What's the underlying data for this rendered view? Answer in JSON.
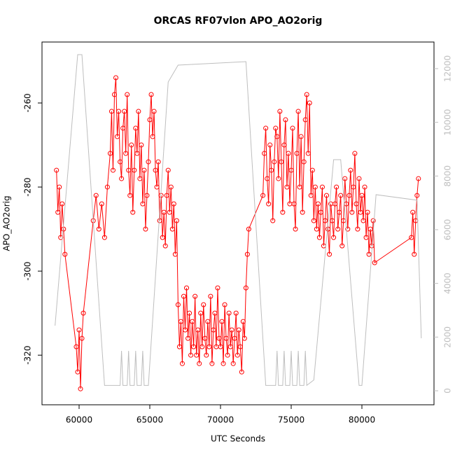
{
  "chart_data": {
    "type": "line",
    "title": "ORCAS RF07vlon APO_AO2orig",
    "x_label": "UTC Seconds",
    "y_label": "APO_AO2orig",
    "xlim": [
      57376,
      85099
    ],
    "xticks": [
      60000,
      65000,
      70000,
      75000,
      80000
    ],
    "ylim": [
      -331.8,
      -245.5
    ],
    "yticks": [
      -320,
      -300,
      -280,
      -260
    ],
    "y2lim": [
      -522,
      12991
    ],
    "y2ticks": [
      0,
      2000,
      4000,
      6000,
      8000,
      10000,
      12000
    ],
    "x": [
      58400,
      58500,
      58600,
      58700,
      58800,
      58900,
      59000,
      59800,
      59900,
      60000,
      60100,
      60200,
      60300,
      61000,
      61200,
      61400,
      61600,
      61800,
      62000,
      62200,
      62300,
      62400,
      62500,
      62600,
      62700,
      62800,
      62900,
      63000,
      63100,
      63200,
      63300,
      63400,
      63500,
      63600,
      63700,
      63800,
      63900,
      64000,
      64100,
      64200,
      64300,
      64400,
      64500,
      64600,
      64700,
      64800,
      64900,
      65000,
      65100,
      65200,
      65300,
      65400,
      65500,
      65600,
      65700,
      65800,
      65900,
      66000,
      66100,
      66200,
      66300,
      66400,
      66500,
      66600,
      66700,
      66800,
      66900,
      67000,
      67100,
      67200,
      67300,
      67400,
      67500,
      67600,
      67700,
      67800,
      67900,
      68000,
      68100,
      68200,
      68300,
      68400,
      68500,
      68600,
      68700,
      68800,
      68900,
      69000,
      69100,
      69200,
      69300,
      69400,
      69500,
      69600,
      69700,
      69800,
      69900,
      70000,
      70100,
      70200,
      70300,
      70400,
      70500,
      70600,
      70700,
      70800,
      70900,
      71000,
      71100,
      71200,
      71300,
      71400,
      71500,
      71600,
      71700,
      71800,
      71900,
      72000,
      73000,
      73100,
      73200,
      73300,
      73400,
      73500,
      73600,
      73700,
      73800,
      73900,
      74000,
      74100,
      74200,
      74300,
      74400,
      74500,
      74600,
      74700,
      74800,
      74900,
      75000,
      75100,
      75200,
      75300,
      75400,
      75500,
      75600,
      75700,
      75800,
      75900,
      76000,
      76100,
      76200,
      76300,
      76400,
      76500,
      76600,
      76700,
      76800,
      76900,
      77000,
      77100,
      77200,
      77300,
      77400,
      77500,
      77600,
      77700,
      77800,
      77900,
      78000,
      78100,
      78200,
      78300,
      78400,
      78500,
      78600,
      78700,
      78800,
      78900,
      79000,
      79100,
      79200,
      79300,
      79400,
      79500,
      79600,
      79700,
      79800,
      79900,
      80000,
      80100,
      80200,
      80300,
      80400,
      80500,
      80600,
      80700,
      80800,
      80900,
      83500,
      83600,
      83700,
      83800,
      83900,
      84000
    ],
    "series": [
      {
        "color": "#ff0000",
        "values": [
          -276,
          -286,
          -280,
          -292,
          -284,
          -290,
          -296,
          -318,
          -324,
          -314,
          -328,
          -316,
          -310,
          -288,
          -282,
          -290,
          -284,
          -292,
          -280,
          -272,
          -262,
          -276,
          -258,
          -254,
          -268,
          -262,
          -274,
          -278,
          -266,
          -262,
          -272,
          -258,
          -276,
          -282,
          -270,
          -286,
          -276,
          -266,
          -272,
          -262,
          -278,
          -270,
          -284,
          -276,
          -290,
          -282,
          -274,
          -264,
          -258,
          -268,
          -262,
          -276,
          -280,
          -274,
          -288,
          -282,
          -292,
          -286,
          -294,
          -282,
          -276,
          -286,
          -280,
          -290,
          -284,
          -296,
          -288,
          -308,
          -318,
          -312,
          -322,
          -306,
          -314,
          -304,
          -316,
          -310,
          -320,
          -312,
          -318,
          -306,
          -320,
          -314,
          -322,
          -310,
          -318,
          -308,
          -316,
          -320,
          -312,
          -318,
          -306,
          -322,
          -314,
          -310,
          -318,
          -304,
          -316,
          -318,
          -312,
          -322,
          -308,
          -316,
          -320,
          -310,
          -318,
          -314,
          -322,
          -316,
          -310,
          -320,
          -314,
          -318,
          -324,
          -312,
          -316,
          -304,
          -296,
          -290,
          -282,
          -272,
          -266,
          -278,
          -284,
          -270,
          -276,
          -288,
          -274,
          -266,
          -268,
          -278,
          -262,
          -274,
          -286,
          -270,
          -264,
          -280,
          -272,
          -284,
          -276,
          -266,
          -284,
          -290,
          -272,
          -262,
          -280,
          -268,
          -286,
          -274,
          -264,
          -258,
          -272,
          -260,
          -282,
          -276,
          -288,
          -280,
          -290,
          -284,
          -292,
          -286,
          -280,
          -294,
          -288,
          -282,
          -290,
          -296,
          -284,
          -288,
          -292,
          -284,
          -280,
          -290,
          -286,
          -282,
          -294,
          -288,
          -278,
          -284,
          -290,
          -282,
          -276,
          -286,
          -280,
          -272,
          -284,
          -290,
          -278,
          -286,
          -282,
          -288,
          -280,
          -292,
          -286,
          -296,
          -290,
          -294,
          -288,
          -298,
          -292,
          -286,
          -296,
          -288,
          -282,
          -278
        ]
      },
      {
        "color": "#bebebe",
        "axis": "y2",
        "markers": false,
        "x": [
          58300,
          59900,
          60200,
          61800,
          62900,
          63000,
          63100,
          63400,
          63500,
          63600,
          63900,
          64000,
          64100,
          64400,
          64500,
          64600,
          64900,
          66300,
          67000,
          71800,
          73200,
          73900,
          74000,
          74100,
          74400,
          74500,
          74600,
          74900,
          75000,
          75100,
          75400,
          75500,
          75600,
          75900,
          76000,
          76100,
          76600,
          78000,
          78500,
          79800,
          80000,
          81000,
          83900,
          84200
        ],
        "values": [
          2426,
          12520,
          12520,
          200,
          200,
          1487,
          200,
          200,
          1487,
          200,
          200,
          1487,
          200,
          200,
          1487,
          200,
          200,
          11500,
          12130,
          12260,
          200,
          200,
          1487,
          200,
          200,
          1487,
          200,
          200,
          1487,
          200,
          200,
          1487,
          200,
          200,
          1487,
          200,
          400,
          8609,
          8609,
          200,
          200,
          7304,
          7100,
          1957
        ]
      }
    ]
  }
}
